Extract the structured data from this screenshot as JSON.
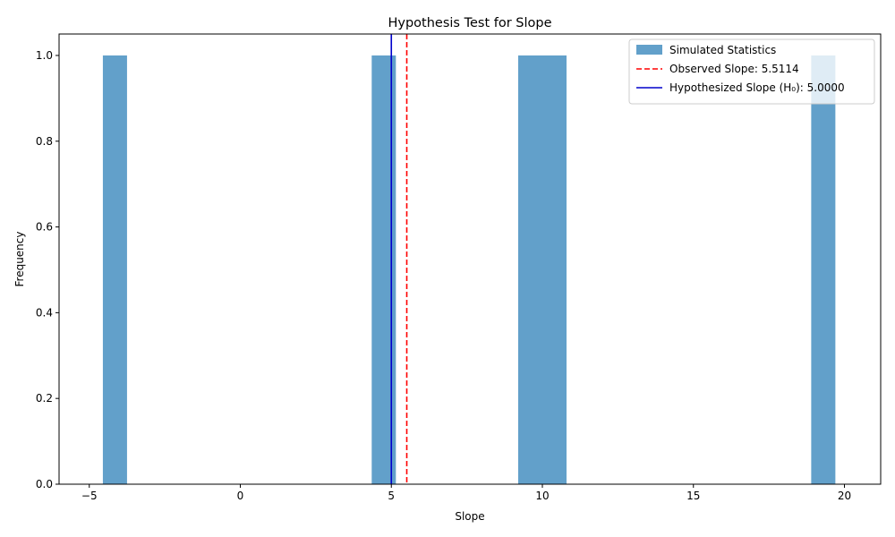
{
  "chart_data": {
    "type": "bar",
    "title": "Hypothesis Test for Slope",
    "xlabel": "Slope",
    "ylabel": "Frequency",
    "xlim": [
      -6.0,
      21.2
    ],
    "ylim": [
      0,
      1.05
    ],
    "xticks": [
      -5,
      0,
      5,
      10,
      15,
      20
    ],
    "xtick_labels": [
      "−5",
      "0",
      "5",
      "10",
      "15",
      "20"
    ],
    "yticks": [
      0.0,
      0.2,
      0.4,
      0.6,
      0.8,
      1.0
    ],
    "ytick_labels": [
      "0.0",
      "0.2",
      "0.4",
      "0.6",
      "0.8",
      "1.0"
    ],
    "histogram": {
      "name": "Simulated Statistics",
      "color": "#1f77b4",
      "alpha": 0.7,
      "bins": [
        {
          "x0": -4.55,
          "x1": -3.75,
          "count": 1
        },
        {
          "x0": 4.35,
          "x1": 5.15,
          "count": 1
        },
        {
          "x0": 9.2,
          "x1": 10.0,
          "count": 1
        },
        {
          "x0": 10.0,
          "x1": 10.8,
          "count": 1
        },
        {
          "x0": 18.9,
          "x1": 19.7,
          "count": 1
        }
      ]
    },
    "lines": [
      {
        "name": "Observed Slope",
        "value": 5.5114,
        "color": "#ff0000",
        "dashed": true
      },
      {
        "name": "Hypothesized Slope (H₀)",
        "value": 5.0,
        "color": "#0000cc",
        "dashed": false
      }
    ],
    "legend": {
      "position": "top-right",
      "entries": [
        "Simulated Statistics",
        "Observed Slope: 5.5114",
        "Hypothesized Slope (H₀): 5.0000"
      ]
    }
  }
}
